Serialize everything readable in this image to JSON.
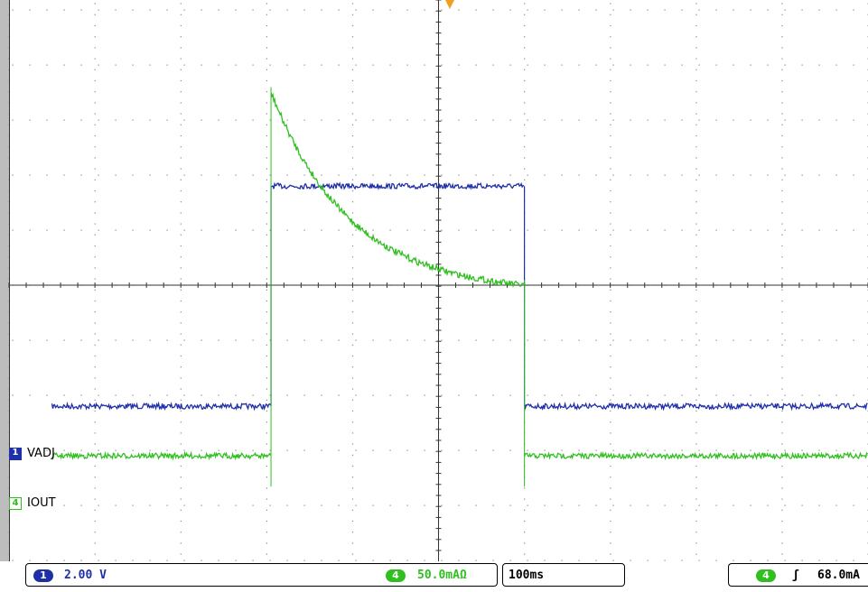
{
  "chart_data": {
    "type": "line",
    "title": "",
    "xlabel": "",
    "ylabel": "",
    "timebase": "100ms",
    "grid": true,
    "divisions": {
      "x": 10,
      "y": 8
    },
    "series": [
      {
        "name": "VADJ",
        "channel": "1",
        "color": "#1f2fa8",
        "scale": "2.00 V",
        "segments": [
          {
            "from_div": 0.5,
            "to_div": 3.05,
            "level_div": -2.2
          },
          {
            "from_div": 3.05,
            "to_div": 6.0,
            "level_div": 1.8
          },
          {
            "from_div": 6.0,
            "to_div": 10.0,
            "level_div": -2.2
          }
        ]
      },
      {
        "name": "IOUT",
        "channel": "4",
        "color": "#2fbf1f",
        "scale": "50.0mAΩ",
        "segments": [
          {
            "from_div": 0.5,
            "to_div": 3.05,
            "level_div": -3.1
          },
          {
            "from_div": 3.05,
            "to_div": 6.0,
            "shape": "decay",
            "start_div": 3.5,
            "end_div": 0.0
          },
          {
            "from_div": 6.0,
            "to_div": 10.0,
            "level_div": -3.1
          }
        ]
      }
    ],
    "trigger": {
      "channel": "4",
      "slope": "rising",
      "level": "68.0mA"
    }
  },
  "status": {
    "ch1_badge": "1",
    "ch1_scale": "2.00 V",
    "ch4_badge": "4",
    "ch4_scale": "50.0mAΩ",
    "timebase": "100ms",
    "trig_badge": "4",
    "trig_slope": "ʃ",
    "trig_level": "68.0mA"
  },
  "markers": {
    "ch1": "1",
    "ch1_label": "VADJ",
    "ch4": "4",
    "ch4_label": "IOUT"
  },
  "colors": {
    "ch1": "#1f2fa8",
    "ch4": "#2fbf1f",
    "trigger_marker": "#f0a020",
    "grid": "#888888"
  }
}
